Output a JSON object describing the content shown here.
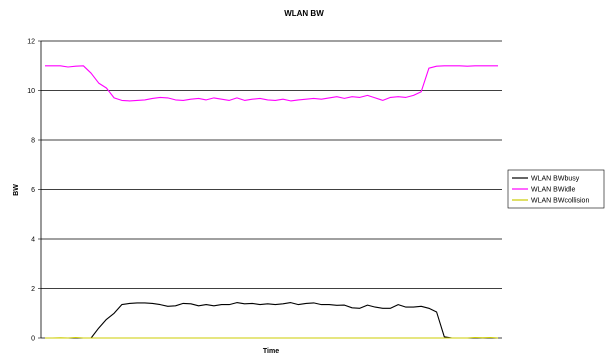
{
  "chart_data": {
    "type": "line",
    "title": "WLAN BW",
    "xlabel": "Time",
    "ylabel": "BW",
    "ylim": [
      0,
      12
    ],
    "yticks": [
      0,
      2,
      4,
      6,
      8,
      10,
      12
    ],
    "grid": "horizontal",
    "legend_position": "right",
    "series": [
      {
        "name": "WLAN BWbusy",
        "color": "#000000",
        "values": [
          0,
          0,
          0,
          0,
          0,
          0,
          0,
          0.4,
          0.75,
          1.0,
          1.35,
          1.4,
          1.42,
          1.42,
          1.4,
          1.35,
          1.28,
          1.3,
          1.4,
          1.38,
          1.3,
          1.35,
          1.3,
          1.35,
          1.35,
          1.43,
          1.38,
          1.4,
          1.35,
          1.38,
          1.35,
          1.38,
          1.43,
          1.35,
          1.4,
          1.42,
          1.35,
          1.35,
          1.32,
          1.33,
          1.22,
          1.2,
          1.33,
          1.25,
          1.2,
          1.2,
          1.35,
          1.25,
          1.25,
          1.28,
          1.2,
          1.05,
          0.05,
          0,
          0,
          0,
          0,
          0,
          0,
          0
        ]
      },
      {
        "name": "WLAN BWidle",
        "color": "#ff00ff",
        "values": [
          11,
          11,
          11,
          10.95,
          10.98,
          11,
          10.7,
          10.3,
          10.1,
          9.7,
          9.6,
          9.58,
          9.6,
          9.62,
          9.68,
          9.72,
          9.7,
          9.62,
          9.6,
          9.65,
          9.68,
          9.62,
          9.7,
          9.65,
          9.6,
          9.7,
          9.6,
          9.65,
          9.68,
          9.62,
          9.6,
          9.65,
          9.58,
          9.62,
          9.65,
          9.68,
          9.65,
          9.7,
          9.75,
          9.68,
          9.75,
          9.72,
          9.8,
          9.7,
          9.6,
          9.72,
          9.75,
          9.72,
          9.8,
          9.95,
          10.9,
          10.98,
          11,
          11,
          11,
          10.98,
          11,
          11,
          11,
          11
        ]
      },
      {
        "name": "WLAN BWcollision",
        "color": "#cccc00",
        "values": [
          0,
          0,
          0.01,
          0,
          0.02,
          0,
          0,
          0,
          0,
          0,
          0,
          0,
          0,
          0,
          0,
          0,
          0,
          0,
          0,
          0,
          0,
          0,
          0,
          0,
          0,
          0,
          0,
          0,
          0,
          0,
          0,
          0,
          0,
          0,
          0,
          0,
          0,
          0,
          0,
          0,
          0,
          0,
          0,
          0,
          0,
          0,
          0,
          0,
          0,
          0,
          0,
          0,
          0,
          0,
          0,
          0,
          0.02,
          0.01,
          0.02,
          0
        ]
      }
    ]
  }
}
